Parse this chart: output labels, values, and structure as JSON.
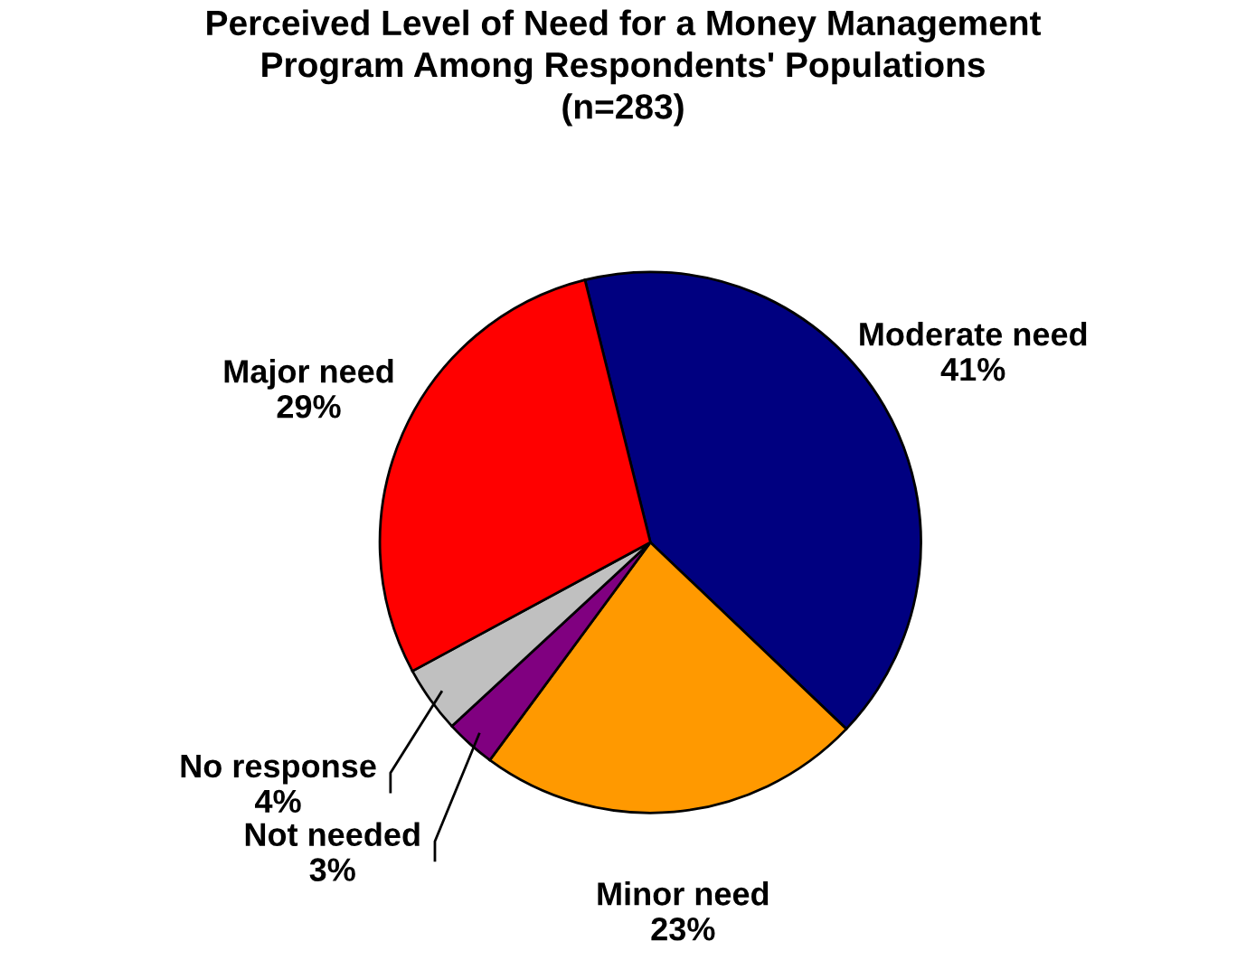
{
  "chart_data": {
    "type": "pie",
    "title": "Perceived Level of Need for a Money Management\nProgram Among Respondents' Populations\n(n=283)",
    "categories": [
      "Moderate need",
      "Minor need",
      "Not needed",
      "No response",
      "Major need"
    ],
    "values": [
      41,
      23,
      3,
      4,
      29
    ],
    "colors": [
      "#000080",
      "#ff9900",
      "#800080",
      "#c0c0c0",
      "#ff0000"
    ],
    "value_labels": [
      "41%",
      "23%",
      "3%",
      "4%",
      "29%"
    ],
    "legend": false
  }
}
